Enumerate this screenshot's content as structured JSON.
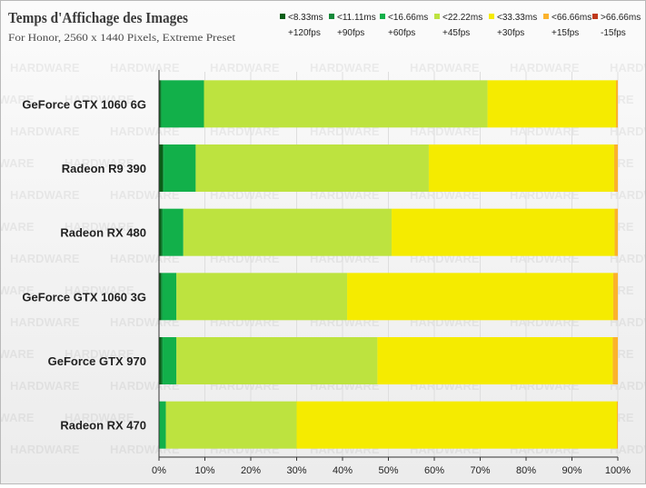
{
  "chart_data": {
    "type": "bar",
    "stacked": true,
    "orientation": "horizontal",
    "title": "Temps d'Affichage des Images",
    "subtitle": "For Honor, 2560 x 1440 Pixels, Extreme Preset",
    "categories": [
      "GeForce GTX 1060 6G",
      "Radeon R9 390",
      "Radeon RX 480",
      "GeForce GTX 1060 3G",
      "GeForce GTX 970",
      "Radeon RX 470"
    ],
    "series": [
      {
        "name": "<8.33ms +120fps",
        "line1": "<8.33ms",
        "line2": "+120fps",
        "color": "#0b5e18",
        "values": [
          0.3,
          0.8,
          0.5,
          0.4,
          0.5,
          0.0
        ]
      },
      {
        "name": "<11.11ms +90fps",
        "line1": "<11.11ms",
        "line2": "+90fps",
        "color": "#15893a",
        "values": [
          0.2,
          0.2,
          0.3,
          0.3,
          0.3,
          0.1
        ]
      },
      {
        "name": "<16.66ms +60fps",
        "line1": "<16.66ms",
        "line2": "+60fps",
        "color": "#12b04a",
        "values": [
          9.3,
          7.0,
          4.5,
          3.1,
          3.0,
          1.4
        ]
      },
      {
        "name": "<22.22ms +45fps",
        "line1": "<22.22ms",
        "line2": "+45fps",
        "color": "#bde33f",
        "values": [
          61.8,
          50.8,
          45.4,
          37.2,
          43.8,
          28.5
        ]
      },
      {
        "name": "<33.33ms +30fps",
        "line1": "<33.33ms",
        "line2": "+30fps",
        "color": "#f5eb00",
        "values": [
          28.0,
          40.4,
          48.6,
          58.0,
          51.3,
          69.8
        ]
      },
      {
        "name": "<66.66ms +15fps",
        "line1": "<66.66ms",
        "line2": "+15fps",
        "color": "#fbb22c",
        "values": [
          0.4,
          0.8,
          0.7,
          1.0,
          1.1,
          0.2
        ]
      },
      {
        "name": ">66.66ms -15fps",
        "line1": ">66.66ms",
        "line2": "-15fps",
        "color": "#c0391b",
        "values": [
          0.0,
          0.0,
          0.0,
          0.0,
          0.0,
          0.0
        ]
      }
    ],
    "xlim": [
      0,
      100
    ],
    "xticks": [
      "0%",
      "10%",
      "20%",
      "30%",
      "40%",
      "50%",
      "60%",
      "70%",
      "80%",
      "90%",
      "100%"
    ],
    "legend_position": "top-right",
    "grid": "vertical",
    "watermark": "HARDWARE"
  }
}
